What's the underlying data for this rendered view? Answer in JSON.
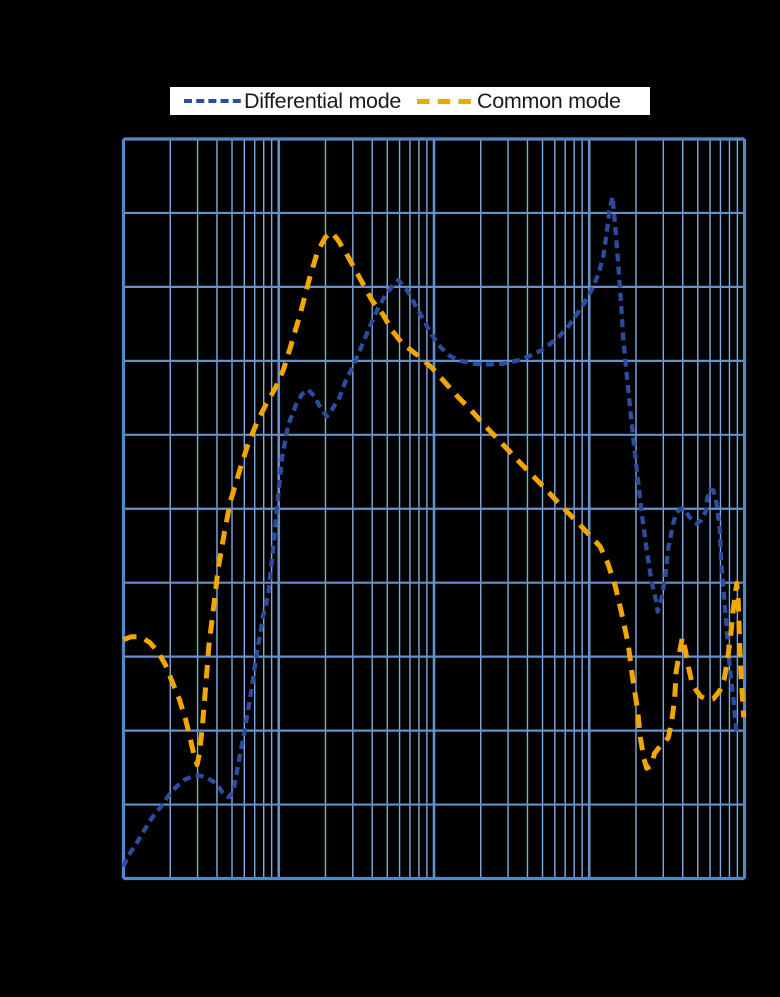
{
  "page": {
    "background": "#000000"
  },
  "legend": {
    "background": "#ffffff",
    "items": [
      {
        "label": "Differential mode",
        "color": "#2E4C9E",
        "dash": "8 4.2"
      },
      {
        "label": "Common mode",
        "color": "#F2A600",
        "dash": "12.5 8.2"
      }
    ]
  },
  "chart_data": {
    "type": "line",
    "title": "",
    "x_axis": {
      "scale": "log",
      "decades": 4,
      "minor_gridlines": true,
      "tick_labels_visible": false
    },
    "y_axis": {
      "divisions": 10,
      "tick_labels_visible": false
    },
    "grid": {
      "minor_color": "#82ABDC",
      "major_color": "#6291CC",
      "border_color": "#5587C5"
    },
    "units_note": "x = log decades from left edge (0-4); y = grid divisions from bottom (0-10); axis tick labels are not visible in the image",
    "series": [
      {
        "name": "Differential mode",
        "color": "#2E4C9E",
        "dash": "8 5.2",
        "width": 4.3,
        "points": [
          [
            0,
            0.16
          ],
          [
            0.03,
            0.31
          ],
          [
            0.08,
            0.46
          ],
          [
            0.13,
            0.64
          ],
          [
            0.18,
            0.81
          ],
          [
            0.24,
            0.97
          ],
          [
            0.29,
            1.12
          ],
          [
            0.34,
            1.24
          ],
          [
            0.39,
            1.33
          ],
          [
            0.44,
            1.38
          ],
          [
            0.49,
            1.39
          ],
          [
            0.53,
            1.37
          ],
          [
            0.58,
            1.31
          ],
          [
            0.62,
            1.22
          ],
          [
            0.65,
            1.12
          ],
          [
            0.68,
            1.1
          ],
          [
            0.71,
            1.2
          ],
          [
            0.74,
            1.56
          ],
          [
            0.78,
            2.0
          ],
          [
            0.82,
            2.5
          ],
          [
            0.86,
            3.06
          ],
          [
            0.9,
            3.56
          ],
          [
            0.93,
            3.81
          ],
          [
            0.96,
            4.37
          ],
          [
            0.99,
            5.04
          ],
          [
            1.02,
            5.68
          ],
          [
            1.06,
            6.13
          ],
          [
            1.11,
            6.4
          ],
          [
            1.15,
            6.55
          ],
          [
            1.19,
            6.61
          ],
          [
            1.23,
            6.52
          ],
          [
            1.27,
            6.36
          ],
          [
            1.31,
            6.25
          ],
          [
            1.34,
            6.33
          ],
          [
            1.39,
            6.5
          ],
          [
            1.43,
            6.72
          ],
          [
            1.49,
            6.98
          ],
          [
            1.54,
            7.23
          ],
          [
            1.59,
            7.48
          ],
          [
            1.64,
            7.71
          ],
          [
            1.69,
            7.9
          ],
          [
            1.74,
            8.03
          ],
          [
            1.77,
            8.09
          ],
          [
            1.8,
            8.03
          ],
          [
            1.84,
            7.91
          ],
          [
            1.88,
            7.75
          ],
          [
            1.93,
            7.57
          ],
          [
            1.98,
            7.37
          ],
          [
            2.04,
            7.19
          ],
          [
            2.1,
            7.07
          ],
          [
            2.17,
            7.0
          ],
          [
            2.26,
            6.96
          ],
          [
            2.35,
            6.95
          ],
          [
            2.44,
            6.96
          ],
          [
            2.53,
            7.0
          ],
          [
            2.61,
            7.06
          ],
          [
            2.69,
            7.14
          ],
          [
            2.75,
            7.23
          ],
          [
            2.81,
            7.34
          ],
          [
            2.87,
            7.48
          ],
          [
            2.92,
            7.63
          ],
          [
            2.97,
            7.79
          ],
          [
            3.02,
            7.98
          ],
          [
            3.06,
            8.18
          ],
          [
            3.09,
            8.41
          ],
          [
            3.11,
            8.69
          ],
          [
            3.13,
            9.03
          ],
          [
            3.15,
            9.22
          ],
          [
            3.16,
            8.99
          ],
          [
            3.18,
            8.49
          ],
          [
            3.2,
            7.93
          ],
          [
            3.22,
            7.28
          ],
          [
            3.25,
            6.63
          ],
          [
            3.28,
            6.03
          ],
          [
            3.31,
            5.45
          ],
          [
            3.34,
            4.91
          ],
          [
            3.37,
            4.44
          ],
          [
            3.4,
            4.03
          ],
          [
            3.43,
            3.76
          ],
          [
            3.44,
            3.61
          ],
          [
            3.46,
            3.73
          ],
          [
            3.49,
            4.08
          ],
          [
            3.51,
            4.48
          ],
          [
            3.54,
            4.79
          ],
          [
            3.56,
            4.95
          ],
          [
            3.59,
            5.0
          ],
          [
            3.62,
            4.98
          ],
          [
            3.64,
            4.9
          ],
          [
            3.67,
            4.83
          ],
          [
            3.69,
            4.8
          ],
          [
            3.72,
            4.84
          ],
          [
            3.75,
            4.96
          ],
          [
            3.76,
            5.14
          ],
          [
            3.78,
            5.26
          ],
          [
            3.8,
            5.25
          ],
          [
            3.82,
            5.07
          ],
          [
            3.84,
            4.73
          ],
          [
            3.85,
            4.27
          ],
          [
            3.87,
            3.79
          ],
          [
            3.89,
            3.25
          ],
          [
            3.91,
            2.75
          ],
          [
            3.93,
            2.41
          ],
          [
            3.94,
            2.15
          ],
          [
            3.95,
            1.95
          ]
        ]
      },
      {
        "name": "Common mode",
        "color": "#F2A600",
        "dash": "13.5 9",
        "width": 5,
        "points": [
          [
            0,
            3.23
          ],
          [
            0.05,
            3.27
          ],
          [
            0.11,
            3.27
          ],
          [
            0.17,
            3.19
          ],
          [
            0.22,
            3.07
          ],
          [
            0.27,
            2.89
          ],
          [
            0.31,
            2.68
          ],
          [
            0.36,
            2.42
          ],
          [
            0.4,
            2.15
          ],
          [
            0.43,
            1.89
          ],
          [
            0.455,
            1.66
          ],
          [
            0.474,
            1.54
          ],
          [
            0.49,
            1.7
          ],
          [
            0.51,
            2.11
          ],
          [
            0.53,
            2.62
          ],
          [
            0.55,
            3.15
          ],
          [
            0.58,
            3.66
          ],
          [
            0.61,
            4.19
          ],
          [
            0.65,
            4.68
          ],
          [
            0.69,
            5.11
          ],
          [
            0.745,
            5.5
          ],
          [
            0.8,
            5.86
          ],
          [
            0.86,
            6.17
          ],
          [
            0.92,
            6.42
          ],
          [
            0.98,
            6.64
          ],
          [
            1.03,
            6.88
          ],
          [
            1.08,
            7.22
          ],
          [
            1.14,
            7.65
          ],
          [
            1.2,
            8.13
          ],
          [
            1.25,
            8.48
          ],
          [
            1.3,
            8.67
          ],
          [
            1.34,
            8.74
          ],
          [
            1.38,
            8.64
          ],
          [
            1.43,
            8.47
          ],
          [
            1.48,
            8.28
          ],
          [
            1.54,
            8.05
          ],
          [
            1.6,
            7.82
          ],
          [
            1.67,
            7.63
          ],
          [
            1.73,
            7.41
          ],
          [
            1.79,
            7.25
          ],
          [
            1.86,
            7.13
          ],
          [
            1.92,
            7.03
          ],
          [
            1.99,
            6.9
          ],
          [
            2.07,
            6.71
          ],
          [
            2.16,
            6.5
          ],
          [
            2.24,
            6.33
          ],
          [
            2.32,
            6.14
          ],
          [
            2.43,
            5.9
          ],
          [
            2.56,
            5.61
          ],
          [
            2.69,
            5.33
          ],
          [
            2.82,
            5.04
          ],
          [
            2.95,
            4.76
          ],
          [
            3.07,
            4.49
          ],
          [
            3.12,
            4.26
          ],
          [
            3.17,
            3.94
          ],
          [
            3.21,
            3.57
          ],
          [
            3.25,
            3.18
          ],
          [
            3.28,
            2.7
          ],
          [
            3.31,
            2.3
          ],
          [
            3.33,
            1.89
          ],
          [
            3.35,
            1.64
          ],
          [
            3.37,
            1.49
          ],
          [
            3.4,
            1.53
          ],
          [
            3.42,
            1.69
          ],
          [
            3.46,
            1.8
          ],
          [
            3.49,
            1.85
          ],
          [
            3.51,
            1.91
          ],
          [
            3.53,
            2.11
          ],
          [
            3.55,
            2.42
          ],
          [
            3.56,
            2.8
          ],
          [
            3.585,
            3.1
          ],
          [
            3.6,
            3.26
          ],
          [
            3.62,
            3.08
          ],
          [
            3.64,
            2.85
          ],
          [
            3.66,
            2.66
          ],
          [
            3.69,
            2.54
          ],
          [
            3.72,
            2.46
          ],
          [
            3.76,
            2.42
          ],
          [
            3.8,
            2.43
          ],
          [
            3.84,
            2.54
          ],
          [
            3.87,
            2.7
          ],
          [
            3.89,
            2.95
          ],
          [
            3.91,
            3.26
          ],
          [
            3.93,
            3.68
          ],
          [
            3.95,
            3.99
          ],
          [
            3.96,
            3.75
          ],
          [
            3.97,
            3.1
          ],
          [
            3.98,
            2.66
          ],
          [
            3.99,
            2.35
          ],
          [
            3.995,
            2.18
          ]
        ]
      }
    ]
  }
}
